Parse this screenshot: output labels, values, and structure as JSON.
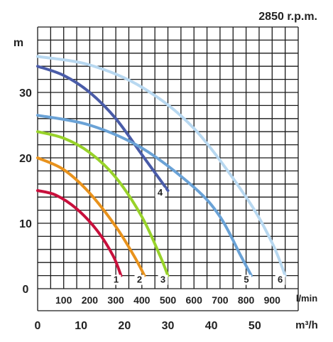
{
  "chart_data": {
    "type": "line",
    "title": "2850 r.p.m.",
    "ylabel": "m",
    "ylim": [
      0,
      40
    ],
    "yticks": [
      "0",
      "10",
      "20",
      "30"
    ],
    "x_lmin": {
      "unit": "l/min",
      "ticks": [
        "100",
        "200",
        "300",
        "400",
        "500",
        "600",
        "700",
        "800",
        "900"
      ],
      "xlim": [
        0,
        1000
      ]
    },
    "x_m3h": {
      "unit": "m³/h",
      "ticks": [
        "0",
        "10",
        "20",
        "30",
        "40",
        "50"
      ],
      "xlim": [
        0,
        60
      ]
    },
    "grid": true,
    "series": [
      {
        "name": "1",
        "color": "#c8103c",
        "points": [
          [
            0,
            15
          ],
          [
            70,
            14.3
          ],
          [
            150,
            12.2
          ],
          [
            230,
            8.8
          ],
          [
            290,
            5
          ],
          [
            320,
            2
          ]
        ]
      },
      {
        "name": "2",
        "color": "#e8921c",
        "points": [
          [
            0,
            20
          ],
          [
            100,
            18.2
          ],
          [
            200,
            14.6
          ],
          [
            300,
            9.5
          ],
          [
            370,
            5
          ],
          [
            410,
            2
          ]
        ]
      },
      {
        "name": "3",
        "color": "#98d22a",
        "points": [
          [
            0,
            24
          ],
          [
            100,
            23
          ],
          [
            200,
            20.8
          ],
          [
            300,
            17
          ],
          [
            400,
            11
          ],
          [
            470,
            5
          ],
          [
            500,
            2
          ]
        ]
      },
      {
        "name": "4",
        "color": "#4a5ca8",
        "points": [
          [
            0,
            34
          ],
          [
            100,
            32.6
          ],
          [
            200,
            30
          ],
          [
            300,
            26
          ],
          [
            400,
            20.5
          ],
          [
            500,
            15
          ]
        ]
      },
      {
        "name": "5",
        "color": "#6aa2d6",
        "points": [
          [
            0,
            26.5
          ],
          [
            200,
            25
          ],
          [
            400,
            21.5
          ],
          [
            600,
            15.5
          ],
          [
            700,
            11
          ],
          [
            780,
            5
          ],
          [
            820,
            2
          ]
        ]
      },
      {
        "name": "6",
        "color": "#b8d8f0",
        "points": [
          [
            0,
            35.5
          ],
          [
            200,
            34.2
          ],
          [
            400,
            30.8
          ],
          [
            600,
            24.5
          ],
          [
            800,
            14
          ],
          [
            900,
            7
          ],
          [
            950,
            2
          ]
        ]
      }
    ]
  }
}
